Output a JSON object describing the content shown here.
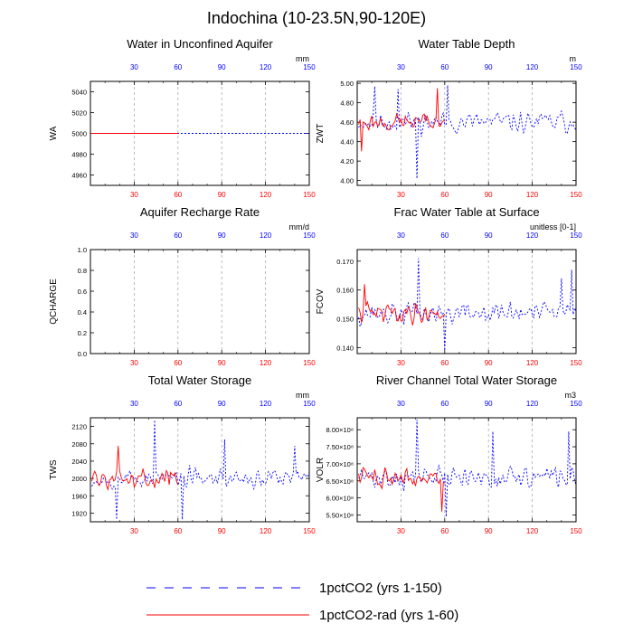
{
  "figure": {
    "title": "Indochina (10-23.5N,90-120E)",
    "legend": [
      {
        "label": "1pctCO2 (yrs 1-150)",
        "color": "#0000ff",
        "style": "dashed"
      },
      {
        "label": "1pctCO2-rad (yrs 1-60)",
        "color": "#ff0000",
        "style": "solid"
      }
    ],
    "colors": {
      "series_a": "#0000ff",
      "series_b": "#ff0000",
      "grid": "#aaaaaa"
    }
  },
  "chart_data": [
    {
      "type": "line",
      "title": "Water in Unconfined Aquifer",
      "ylabel": "WA",
      "unit": "mm",
      "xlim": [
        0,
        150
      ],
      "ylim": [
        4950,
        5050
      ],
      "xticks": [
        30,
        60,
        90,
        120,
        150
      ],
      "yticks": [
        4960,
        4980,
        5000,
        5020,
        5040
      ],
      "ytick_labels": [
        "4960",
        "4980",
        "5000",
        "5020",
        "5040"
      ],
      "series": [
        {
          "name": "1pctCO2 (yrs 1-150)",
          "kind": "constant",
          "value": 5000,
          "x_end": 150
        },
        {
          "name": "1pctCO2-rad (yrs 1-60)",
          "kind": "constant",
          "value": 5000,
          "x_end": 60
        }
      ]
    },
    {
      "type": "line",
      "title": "Water Table Depth",
      "ylabel": "ZWT",
      "unit": "m",
      "xlim": [
        0,
        150
      ],
      "ylim": [
        3.95,
        5.02
      ],
      "xticks": [
        30,
        60,
        90,
        120,
        150
      ],
      "yticks": [
        4.0,
        4.2,
        4.4,
        4.6,
        4.8,
        5.0
      ],
      "ytick_labels": [
        "4.00",
        "4.20",
        "4.40",
        "4.60",
        "4.80",
        "5.00"
      ],
      "series": [
        {
          "name": "1pctCO2 (yrs 1-150)",
          "kind": "noise",
          "mean": 4.6,
          "amp": 0.15,
          "min": 4.02,
          "max": 4.98,
          "spikes": [
            [
              41,
              4.02
            ],
            [
              62,
              4.98
            ],
            [
              12,
              4.97
            ],
            [
              28,
              4.94
            ]
          ],
          "x_end": 150,
          "seed": 11
        },
        {
          "name": "1pctCO2-rad (yrs 1-60)",
          "kind": "noise",
          "mean": 4.6,
          "amp": 0.13,
          "min": 4.25,
          "max": 4.95,
          "spikes": [
            [
              3,
              4.3
            ],
            [
              55,
              4.95
            ]
          ],
          "x_end": 60,
          "seed": 23
        }
      ]
    },
    {
      "type": "line",
      "title": "Aquifer Recharge Rate",
      "ylabel": "QCHARGE",
      "unit": "mm/d",
      "xlim": [
        0,
        150
      ],
      "ylim": [
        0,
        1
      ],
      "xticks": [
        30,
        60,
        90,
        120,
        150
      ],
      "yticks": [
        0.0,
        0.2,
        0.4,
        0.6,
        0.8,
        1.0
      ],
      "ytick_labels": [
        "0.0",
        "0.2",
        "0.4",
        "0.6",
        "0.8",
        "1.0"
      ],
      "series": []
    },
    {
      "type": "line",
      "title": "Frac Water Table at Surface",
      "ylabel": "FCOV",
      "unit": "unitless [0-1]",
      "xlim": [
        0,
        150
      ],
      "ylim": [
        0.138,
        0.174
      ],
      "xticks": [
        30,
        60,
        90,
        120,
        150
      ],
      "yticks": [
        0.14,
        0.15,
        0.16,
        0.17
      ],
      "ytick_labels": [
        "0.140",
        "0.150",
        "0.160",
        "0.170"
      ],
      "series": [
        {
          "name": "1pctCO2 (yrs 1-150)",
          "kind": "noise",
          "mean": 0.152,
          "amp": 0.0055,
          "min": 0.139,
          "max": 0.171,
          "spikes": [
            [
              42,
              0.171
            ],
            [
              147,
              0.167
            ],
            [
              60,
              0.139
            ],
            [
              140,
              0.164
            ]
          ],
          "x_end": 150,
          "seed": 37
        },
        {
          "name": "1pctCO2-rad (yrs 1-60)",
          "kind": "noise",
          "mean": 0.152,
          "amp": 0.005,
          "min": 0.141,
          "max": 0.163,
          "spikes": [
            [
              5,
              0.162
            ]
          ],
          "x_end": 60,
          "seed": 41
        }
      ]
    },
    {
      "type": "line",
      "title": "Total Water Storage",
      "ylabel": "TWS",
      "unit": "mm",
      "xlim": [
        0,
        150
      ],
      "ylim": [
        1900,
        2140
      ],
      "xticks": [
        30,
        60,
        90,
        120,
        150
      ],
      "yticks": [
        1920,
        1960,
        2000,
        2040,
        2080,
        2120
      ],
      "ytick_labels": [
        "1920",
        "1960",
        "2000",
        "2040",
        "2080",
        "2120"
      ],
      "series": [
        {
          "name": "1pctCO2 (yrs 1-150)",
          "kind": "noise",
          "mean": 2000,
          "amp": 30,
          "min": 1905,
          "max": 2135,
          "spikes": [
            [
              44,
              2135
            ],
            [
              18,
              1905
            ],
            [
              63,
              1905
            ],
            [
              92,
              2090
            ],
            [
              140,
              2075
            ]
          ],
          "x_end": 150,
          "seed": 53
        },
        {
          "name": "1pctCO2-rad (yrs 1-60)",
          "kind": "noise",
          "mean": 2000,
          "amp": 28,
          "min": 1930,
          "max": 2080,
          "spikes": [
            [
              19,
              2075
            ]
          ],
          "x_end": 60,
          "seed": 59
        }
      ]
    },
    {
      "type": "line",
      "title": "River Channel Total Water Storage",
      "ylabel": "VOLR",
      "unit": "m3",
      "xlim": [
        0,
        150
      ],
      "ylim": [
        530000000.0,
        835000000.0
      ],
      "xticks": [
        30,
        60,
        90,
        120,
        150
      ],
      "yticks": [
        550000000.0,
        600000000.0,
        650000000.0,
        700000000.0,
        750000000.0,
        800000000.0
      ],
      "ytick_labels": [
        "5.50×10⁸",
        "6.00×10⁸",
        "6.50×10⁸",
        "7.00×10⁸",
        "7.50×10⁸",
        "8.00×10⁸"
      ],
      "series": [
        {
          "name": "1pctCO2 (yrs 1-150)",
          "kind": "noise",
          "mean": 660000000.0,
          "amp": 45000000.0,
          "min": 545000000.0,
          "max": 830000000.0,
          "spikes": [
            [
              41,
              830000000.0
            ],
            [
              93,
              795000000.0
            ],
            [
              61,
              545000000.0
            ],
            [
              145,
              795000000.0
            ]
          ],
          "x_end": 150,
          "seed": 71
        },
        {
          "name": "1pctCO2-rad (yrs 1-60)",
          "kind": "noise",
          "mean": 660000000.0,
          "amp": 40000000.0,
          "min": 560000000.0,
          "max": 760000000.0,
          "spikes": [
            [
              58,
              560000000.0
            ]
          ],
          "x_end": 60,
          "seed": 73
        }
      ]
    }
  ]
}
